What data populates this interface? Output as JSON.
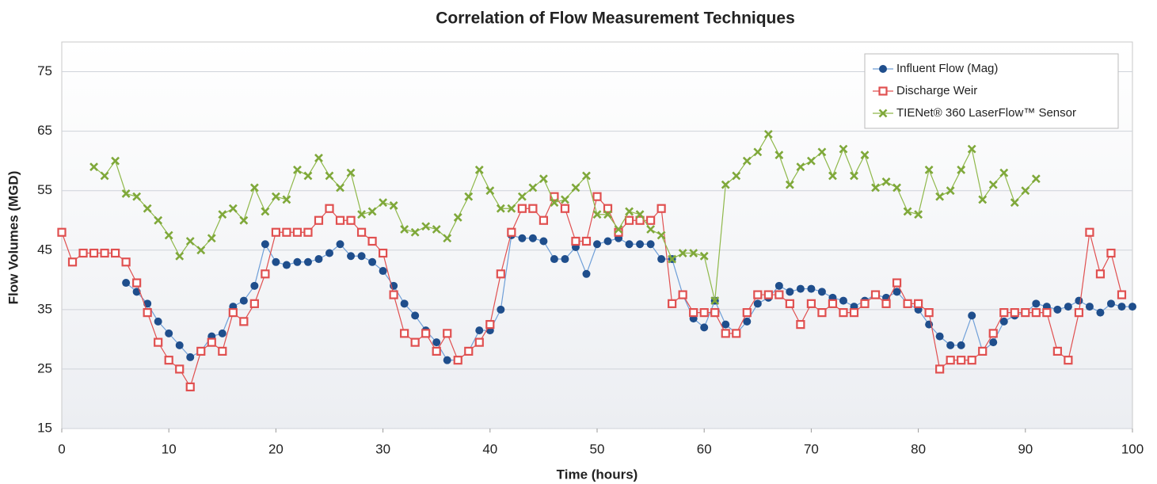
{
  "chart_data": {
    "type": "line",
    "title": "Correlation of Flow Measurement Techniques",
    "x_label": "Time (hours)",
    "y_label": "Flow Volumes (MGD)",
    "x": [
      0,
      1,
      2,
      3,
      4,
      5,
      6,
      7,
      8,
      9,
      10,
      11,
      12,
      13,
      14,
      15,
      16,
      17,
      18,
      19,
      20,
      21,
      22,
      23,
      24,
      25,
      26,
      27,
      28,
      29,
      30,
      31,
      32,
      33,
      34,
      35,
      36,
      37,
      38,
      39,
      40,
      41,
      42,
      43,
      44,
      45,
      46,
      47,
      48,
      49,
      50,
      51,
      52,
      53,
      54,
      55,
      56,
      57,
      58,
      59,
      60,
      61,
      62,
      63,
      64,
      65,
      66,
      67,
      68,
      69,
      70,
      71,
      72,
      73,
      74,
      75,
      76,
      77,
      78,
      79,
      80,
      81,
      82,
      83,
      84,
      85,
      86,
      87,
      88,
      89,
      90,
      91,
      92,
      93,
      94,
      95,
      96,
      97,
      98,
      99,
      100
    ],
    "series": [
      {
        "name": "Influent Flow (Mag)",
        "color": "#1f4e8c",
        "line_color": "#6f9fd8",
        "marker": "circle",
        "values": [
          null,
          null,
          null,
          null,
          null,
          null,
          39.5,
          38,
          36,
          33,
          31,
          29,
          27,
          28,
          30.5,
          31,
          35.5,
          36.5,
          39,
          46,
          43,
          42.5,
          43,
          43,
          43.5,
          44.5,
          46,
          44,
          44,
          43,
          41.5,
          39,
          36,
          34,
          31.5,
          29.5,
          26.5,
          26.5,
          28,
          31.5,
          31.5,
          35,
          47.5,
          47,
          47,
          46.5,
          43.5,
          43.5,
          45.5,
          41,
          46,
          46.5,
          47,
          46,
          46,
          46,
          43.5,
          43.5,
          37.5,
          33.5,
          32,
          36.5,
          32.5,
          31,
          33,
          36,
          37,
          39,
          38,
          38.5,
          38.5,
          38,
          37,
          36.5,
          35.5,
          36.5,
          37.5,
          37,
          38,
          36,
          35,
          32.5,
          30.5,
          29,
          29,
          34,
          28,
          29.5,
          33,
          34,
          34.5,
          36,
          35.5,
          35,
          35.5,
          36.5,
          35.5,
          34.5,
          36,
          35.5,
          35.5
        ]
      },
      {
        "name": "Discharge Weir",
        "color": "#e05050",
        "line_color": "#e05050",
        "marker": "square",
        "values": [
          48,
          43,
          44.5,
          44.5,
          44.5,
          44.5,
          43,
          39.5,
          34.5,
          29.5,
          26.5,
          25,
          22,
          28,
          29.5,
          28,
          34.5,
          33,
          36,
          41,
          48,
          48,
          48,
          48,
          50,
          52,
          50,
          50,
          48,
          46.5,
          44.5,
          37.5,
          31,
          29.5,
          31,
          28,
          31,
          26.5,
          28,
          29.5,
          32.5,
          41,
          48,
          52,
          52,
          50,
          54,
          52,
          46.5,
          46.5,
          54,
          52,
          48,
          50,
          50,
          50,
          52,
          36,
          37.5,
          34.5,
          34.5,
          34.5,
          31,
          31,
          34.5,
          37.5,
          37.5,
          37.5,
          36,
          32.5,
          36,
          34.5,
          36,
          34.5,
          34.5,
          36,
          37.5,
          36,
          39.5,
          36,
          36,
          34.5,
          25,
          26.5,
          26.5,
          26.5,
          28,
          31,
          34.5,
          34.5,
          34.5,
          34.5,
          34.5,
          28,
          26.5,
          34.5,
          48,
          41,
          44.5,
          37.5,
          null
        ]
      },
      {
        "name": "TIENet® 360 LaserFlow™ Sensor",
        "color": "#7fa83a",
        "line_color": "#8fb84a",
        "marker": "x",
        "values": [
          null,
          null,
          null,
          59,
          57.5,
          60,
          54.5,
          54,
          52,
          50,
          47.5,
          44,
          46.5,
          45,
          47,
          51,
          52,
          50,
          55.5,
          51.5,
          54,
          53.5,
          58.5,
          57.5,
          60.5,
          57.5,
          55.5,
          58,
          51,
          51.5,
          53,
          52.5,
          48.5,
          48,
          49,
          48.5,
          47,
          50.5,
          54,
          58.5,
          55,
          52,
          52,
          54,
          55.5,
          57,
          53,
          53.5,
          55.5,
          57.5,
          51,
          51,
          48.5,
          51.5,
          51,
          48.5,
          47.5,
          43.5,
          44.5,
          44.5,
          44,
          36.5,
          56,
          57.5,
          60,
          61.5,
          64.5,
          61,
          56,
          59,
          60,
          61.5,
          57.5,
          62,
          57.5,
          61,
          55.5,
          56.5,
          55.5,
          51.5,
          51,
          58.5,
          54,
          55,
          58.5,
          62,
          53.5,
          56,
          58,
          53,
          55,
          57,
          null,
          null,
          null,
          null,
          null,
          null,
          null,
          null,
          null
        ]
      }
    ],
    "xlim": [
      0,
      100
    ],
    "xticks": [
      0,
      10,
      20,
      30,
      40,
      50,
      60,
      70,
      80,
      90,
      100
    ],
    "ylim": [
      15,
      80
    ],
    "yticks": [
      15,
      25,
      35,
      45,
      55,
      65,
      75
    ],
    "grid": true,
    "legend": "top-right"
  }
}
